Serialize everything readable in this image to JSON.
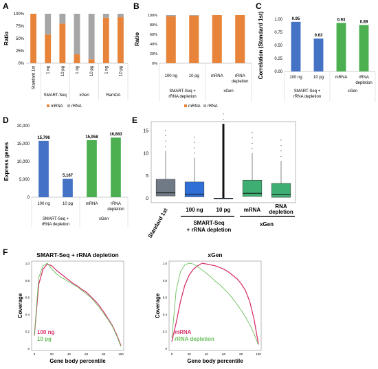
{
  "colors": {
    "orange": "#e8833a",
    "gray": "#a6a6a6",
    "blue": "#4472c4",
    "green": "#4caf50",
    "red": "#d6336c",
    "lightgreen": "#6abf5b",
    "box_gray": "#6f7a86",
    "box_blue": "#2f6fd6",
    "box_green": "#3fae73"
  },
  "chart_data": [
    {
      "panel": "A",
      "type": "bar",
      "stacked": true,
      "ylabel": "Ratio",
      "yticks": [
        "0%",
        "25%",
        "50%",
        "75%",
        "100%"
      ],
      "ylim": [
        0,
        100
      ],
      "categories": [
        "Standard 1st",
        "1 ng",
        "10 pg",
        "1 ng",
        "10 pg",
        "1 ng",
        "10 pg"
      ],
      "groups": [
        {
          "label": "SMART-Seq",
          "span": [
            1,
            2
          ]
        },
        {
          "label": "xGen",
          "span": [
            3,
            4
          ]
        },
        {
          "label": "RamDA",
          "span": [
            5,
            6
          ]
        }
      ],
      "series": [
        {
          "name": "mRNA",
          "values": [
            100,
            58,
            80,
            18,
            8,
            92,
            93
          ]
        },
        {
          "name": "rRNA",
          "values": [
            0,
            42,
            20,
            82,
            92,
            8,
            7
          ]
        }
      ],
      "legend": "bottom"
    },
    {
      "panel": "B",
      "type": "bar",
      "stacked": true,
      "ylabel": "Ratio",
      "yticks": [
        "0%",
        "20%",
        "40%",
        "60%",
        "80%",
        "100%"
      ],
      "ylim": [
        0,
        100
      ],
      "categories": [
        "100 ng",
        "10 pg",
        "mRNA",
        "rRNA depletion"
      ],
      "groups": [
        {
          "label": "SMART-Seq + rRNA depletion",
          "span": [
            0,
            1
          ]
        },
        {
          "label": "xGen",
          "span": [
            2,
            3
          ]
        }
      ],
      "series": [
        {
          "name": "mRNA",
          "values": [
            98,
            99,
            100,
            100
          ]
        },
        {
          "name": "rRNA",
          "values": [
            2,
            1,
            0,
            0
          ]
        }
      ],
      "legend": "bottom"
    },
    {
      "panel": "C",
      "type": "bar",
      "ylabel": "Correlation (Standard 1st)",
      "yticks": [
        "0.00",
        "0.25",
        "0.50",
        "0.75",
        "1.00"
      ],
      "ylim": [
        0,
        1
      ],
      "categories": [
        "100 ng",
        "10 pg",
        "mRNA",
        "rRNA depletion"
      ],
      "values": [
        0.95,
        0.63,
        0.93,
        0.89
      ],
      "labels": [
        "0.95",
        "0.63",
        "0.93",
        "0.89"
      ],
      "groups": [
        {
          "label": "SMART-Seq + rRNA depletion",
          "span": [
            0,
            1
          ]
        },
        {
          "label": "xGen",
          "span": [
            2,
            3
          ]
        }
      ]
    },
    {
      "panel": "D",
      "type": "bar",
      "ylabel": "Express genes",
      "yticks": [
        "0",
        "5,000",
        "10,000",
        "15,000",
        "20,000"
      ],
      "ylim": [
        0,
        20000
      ],
      "categories": [
        "100 ng",
        "10 pg",
        "mRNA",
        "rRNA depletion"
      ],
      "values": [
        15796,
        5167,
        15958,
        16683
      ],
      "labels": [
        "15,796",
        "5,167",
        "15,958",
        "16,683"
      ],
      "groups": [
        {
          "label": "SMART-Seq + rRNA depletion",
          "span": [
            0,
            1
          ]
        },
        {
          "label": "xGen",
          "span": [
            2,
            3
          ]
        }
      ]
    },
    {
      "panel": "E",
      "type": "box",
      "yticks": [
        "0",
        "5",
        "10",
        "15"
      ],
      "ylim": [
        -1,
        17
      ],
      "categories": [
        "Standard 1st",
        "100 ng",
        "10 pg",
        "mRNA",
        "RNA depletion"
      ],
      "groups": [
        {
          "label": "SMART-Seq + rRNA depletion",
          "span": [
            1,
            2
          ]
        },
        {
          "label": "xGen",
          "span": [
            3,
            4
          ]
        }
      ],
      "boxes": [
        {
          "q1": 0.5,
          "median": 1.2,
          "q3": 4.2,
          "whislo": 0,
          "whishi": 10.5
        },
        {
          "q1": 0.3,
          "median": 0.9,
          "q3": 3.6,
          "whislo": 0,
          "whishi": 9.0
        },
        {
          "q1": 0,
          "median": 0,
          "q3": 0,
          "whislo": 0,
          "whishi": 16.5
        },
        {
          "q1": 0.4,
          "median": 1.1,
          "q3": 4.0,
          "whislo": 0,
          "whishi": 10.0
        },
        {
          "q1": 0.2,
          "median": 0.8,
          "q3": 3.3,
          "whislo": 0,
          "whishi": 8.3
        }
      ]
    },
    {
      "panel": "F1",
      "type": "line",
      "title": "SMART-Seq + rRNA depletion",
      "xlabel": "Gene body percentile",
      "ylabel": "Coverage",
      "xticks": [
        "0",
        "20",
        "40",
        "60",
        "80",
        "100"
      ],
      "yticks": [
        "0",
        "0.2",
        "0.4",
        "0.6",
        "0.8",
        "1.0"
      ],
      "x": [
        0,
        5,
        10,
        15,
        20,
        25,
        30,
        35,
        40,
        45,
        50,
        55,
        60,
        65,
        70,
        75,
        80,
        85,
        90,
        95,
        100
      ],
      "series": [
        {
          "name": "100 ng",
          "values": [
            0.15,
            0.75,
            0.93,
            0.99,
            0.97,
            0.92,
            0.88,
            0.84,
            0.8,
            0.76,
            0.73,
            0.69,
            0.66,
            0.61,
            0.56,
            0.5,
            0.43,
            0.35,
            0.27,
            0.16,
            0.03
          ]
        },
        {
          "name": "10 pg",
          "values": [
            0.15,
            0.83,
            0.97,
            1.0,
            0.93,
            0.88,
            0.84,
            0.81,
            0.78,
            0.75,
            0.72,
            0.68,
            0.64,
            0.6,
            0.54,
            0.48,
            0.41,
            0.34,
            0.26,
            0.15,
            0.02
          ]
        }
      ]
    },
    {
      "panel": "F2",
      "type": "line",
      "title": "xGen",
      "xlabel": "Gene body percentile",
      "ylabel": "Coverage",
      "xticks": [
        "0",
        "20",
        "40",
        "60",
        "80",
        "100"
      ],
      "yticks": [
        "0",
        "0.2",
        "0.4",
        "0.6",
        "0.8",
        "1.0"
      ],
      "x": [
        0,
        5,
        10,
        15,
        20,
        25,
        30,
        35,
        40,
        45,
        50,
        55,
        60,
        65,
        70,
        75,
        80,
        85,
        90,
        95,
        100
      ],
      "series": [
        {
          "name": "mRNA",
          "values": [
            0.08,
            0.3,
            0.55,
            0.74,
            0.86,
            0.93,
            0.97,
            1.0,
            0.99,
            0.98,
            0.97,
            0.95,
            0.93,
            0.9,
            0.86,
            0.82,
            0.76,
            0.68,
            0.55,
            0.34,
            0.05
          ]
        },
        {
          "name": "rRNA depletion",
          "values": [
            0.12,
            0.68,
            0.9,
            0.98,
            1.0,
            0.99,
            0.96,
            0.92,
            0.88,
            0.84,
            0.79,
            0.75,
            0.7,
            0.65,
            0.59,
            0.52,
            0.45,
            0.37,
            0.28,
            0.17,
            0.04
          ]
        }
      ]
    }
  ]
}
